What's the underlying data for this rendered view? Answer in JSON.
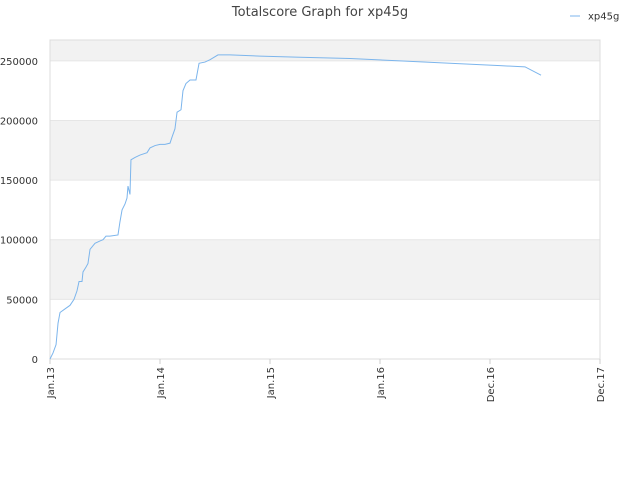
{
  "chart_data": {
    "type": "line",
    "title": "Totalscore Graph for xp45g",
    "x": [
      2013.0,
      2013.027,
      2013.055,
      2013.073,
      2013.091,
      2013.136,
      2013.182,
      2013.218,
      2013.245,
      2013.264,
      2013.291,
      2013.3,
      2013.327,
      2013.345,
      2013.364,
      2013.409,
      2013.455,
      2013.482,
      2013.509,
      2013.545,
      2013.618,
      2013.636,
      2013.655,
      2013.682,
      2013.7,
      2013.709,
      2013.727,
      2013.736,
      2013.773,
      2013.818,
      2013.882,
      2013.909,
      2013.955,
      2014.0,
      2014.045,
      2014.091,
      2014.109,
      2014.136,
      2014.155,
      2014.191,
      2014.209,
      2014.236,
      2014.273,
      2014.327,
      2014.355,
      2014.409,
      2014.455,
      2014.527,
      2014.636,
      2014.909,
      2015.273,
      2015.727,
      2016.182,
      2016.636,
      2017.091,
      2017.318,
      2017.464
    ],
    "series": [
      {
        "name": "xp45g",
        "color": "#7cb5ec",
        "values": [
          0,
          5000,
          12000,
          30000,
          39000,
          42000,
          45000,
          50000,
          57000,
          65000,
          65000,
          73000,
          77000,
          80000,
          92000,
          97000,
          99000,
          100000,
          103000,
          103000,
          104000,
          115000,
          125000,
          130000,
          135000,
          145000,
          138000,
          167000,
          169000,
          171000,
          173000,
          177000,
          179000,
          180000,
          180000,
          181000,
          186000,
          193000,
          207000,
          209000,
          225000,
          231000,
          234000,
          234000,
          248000,
          249000,
          251000,
          255000,
          255000,
          254000,
          253000,
          252000,
          250000,
          248000,
          246000,
          245000,
          238000
        ]
      }
    ],
    "xlim": [
      2013,
      2018
    ],
    "xticks": [
      {
        "value": 2013,
        "label": "Jan.13"
      },
      {
        "value": 2014,
        "label": "Jan.14"
      },
      {
        "value": 2015,
        "label": "Jan.15"
      },
      {
        "value": 2016,
        "label": "Jan.16"
      },
      {
        "value": 2017,
        "label": "Dec.16"
      },
      {
        "value": 2018,
        "label": "Dec.17"
      }
    ],
    "ylim": [
      0,
      267500
    ],
    "yticks": [
      0,
      50000,
      100000,
      150000,
      200000,
      250000
    ],
    "grid": true,
    "legend": "top-right"
  }
}
